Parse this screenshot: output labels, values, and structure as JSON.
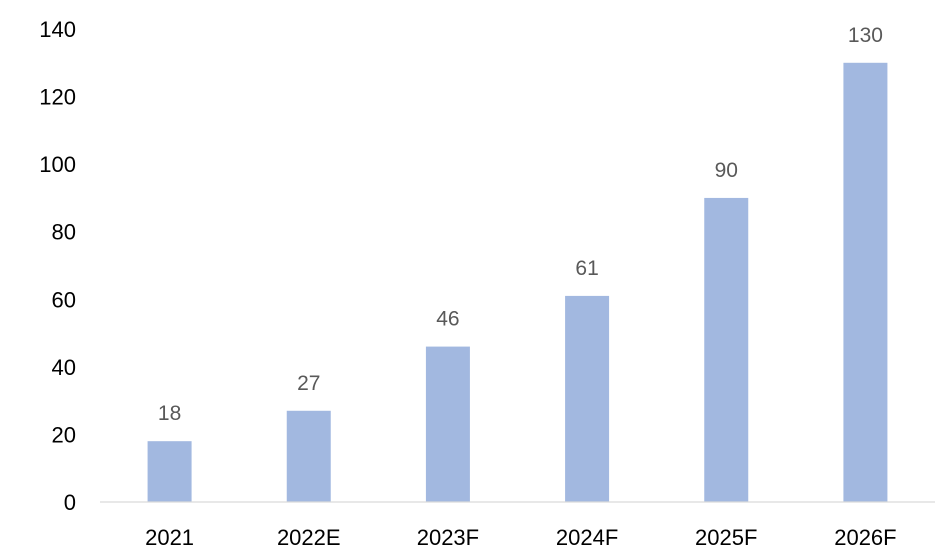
{
  "chart_data": {
    "type": "bar",
    "categories": [
      "2021",
      "2022E",
      "2023F",
      "2024F",
      "2025F",
      "2026F"
    ],
    "series": [
      {
        "values": [
          18,
          27,
          46,
          61,
          90,
          130
        ]
      }
    ],
    "y_ticks": [
      "0",
      "20",
      "40",
      "60",
      "80",
      "100",
      "120",
      "140"
    ],
    "ylim": [
      0,
      140
    ],
    "grid": false,
    "legend": "none",
    "data_labels": true,
    "bar_color": "#A2B8E0",
    "axis_color": "#D9D9D9"
  }
}
